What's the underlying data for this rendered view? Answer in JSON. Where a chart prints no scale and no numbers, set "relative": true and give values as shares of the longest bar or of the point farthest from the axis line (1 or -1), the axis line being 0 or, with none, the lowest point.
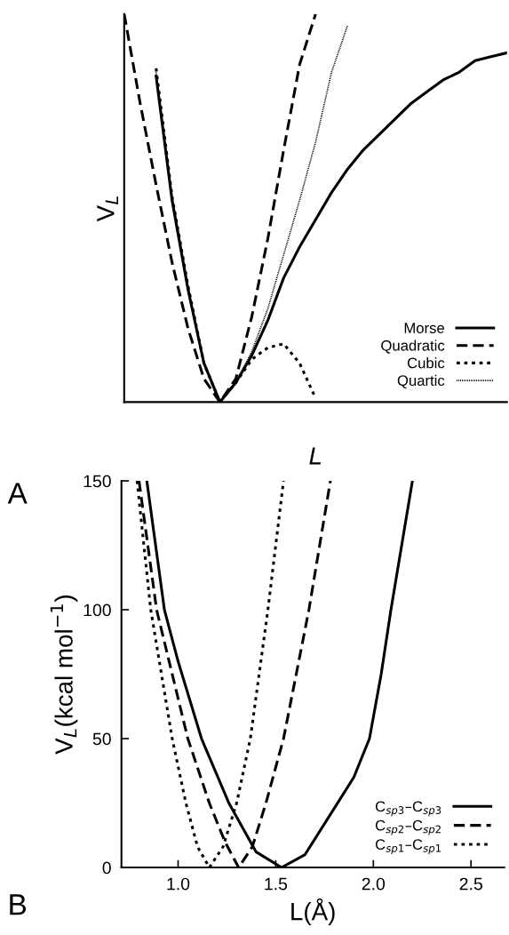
{
  "chart_data": [
    {
      "type": "line",
      "relative": true,
      "xlabel": "L",
      "ylabel": "V$_{L}$",
      "annotations": [
        "A"
      ],
      "legend": "bottom right",
      "tick_labels": false,
      "categories": [
        null,
        null,
        null,
        null,
        null,
        null,
        null,
        null,
        null,
        null,
        null,
        null,
        null,
        null,
        null,
        null,
        null,
        null,
        null,
        null,
        null,
        null,
        null,
        null,
        null
      ],
      "series": [
        {
          "name": "Morse",
          "color": "#000000",
          "line_style": "solid",
          "values": [
            null,
            null,
            0.84,
            0.52,
            0.29,
            0.1,
            0,
            0.05,
            0.12,
            0.21,
            0.32,
            0.4,
            0.47,
            0.54,
            0.6,
            0.65,
            0.69,
            0.73,
            0.77,
            0.8,
            0.83,
            0.85,
            0.88,
            0.89,
            0.9
          ]
        },
        {
          "name": "Quadratic",
          "color": "#000000",
          "line_style": "dashed",
          "values": [
            1.0,
            0.77,
            0.56,
            0.36,
            0.19,
            0.06,
            0,
            0.06,
            0.22,
            0.42,
            0.65,
            0.87,
            1.0,
            null,
            null,
            null,
            null,
            null,
            null,
            null,
            null,
            null,
            null,
            null,
            null
          ]
        },
        {
          "name": "Cubic",
          "color": "#000000",
          "line_style": "dotted",
          "values": [
            null,
            null,
            0.86,
            0.53,
            0.3,
            0.1,
            0,
            0.05,
            0.11,
            0.14,
            0.15,
            0.1,
            0.01,
            null,
            null,
            null,
            null,
            null,
            null,
            null,
            null,
            null,
            null,
            null,
            null
          ]
        },
        {
          "name": "Quartic",
          "color": "#000000",
          "line_style": "dotted",
          "values": [
            null,
            null,
            0.85,
            0.53,
            0.3,
            0.1,
            0,
            0.05,
            0.13,
            0.24,
            0.38,
            0.52,
            0.67,
            0.85,
            0.97,
            null,
            null,
            null,
            null,
            null,
            null,
            null,
            null,
            null,
            null
          ]
        }
      ]
    },
    {
      "type": "line",
      "xlabel": "L(Å)",
      "ylabel": "V$_{L}$(kcal mol$^{−1}$)",
      "annotations": [
        "B"
      ],
      "legend": "bottom right",
      "xlim": [
        0.71,
        2.67
      ],
      "xticks": [
        {
          "value": 1,
          "label": "1.0"
        },
        1.5,
        {
          "value": 2,
          "label": "2.0"
        },
        2.5
      ],
      "ylim": [
        0,
        150
      ],
      "yticks": [
        0,
        50,
        100,
        150
      ],
      "series": [
        {
          "name": "C$_{sp3}$–C$_{sp3}$",
          "color": "#000000",
          "line_style": "solid",
          "x": [
            0.84,
            0.93,
            1.0,
            1.12,
            1.26,
            1.4,
            1.53,
            1.65,
            1.8,
            1.9,
            1.98,
            2.04,
            2.09,
            2.2
          ],
          "values": [
            150,
            100,
            80,
            50,
            25,
            6,
            0,
            5,
            23,
            35,
            50,
            75,
            100,
            150
          ]
        },
        {
          "name": "C$_{sp2}$–C$_{sp2}$",
          "color": "#000000",
          "line_style": "dashed",
          "x": [
            0.8,
            0.89,
            1.05,
            1.16,
            1.24,
            1.31,
            1.38,
            1.45,
            1.54,
            1.67,
            1.78
          ],
          "values": [
            150,
            100,
            50,
            25,
            10,
            0,
            8,
            25,
            50,
            100,
            150
          ]
        },
        {
          "name": "C$_{sp1}$–C$_{sp1}$",
          "color": "#000000",
          "line_style": "dotted",
          "x": [
            0.79,
            0.86,
            0.97,
            1.04,
            1.1,
            1.16,
            1.23,
            1.3,
            1.37,
            1.46,
            1.54
          ],
          "values": [
            150,
            100,
            50,
            25,
            8,
            0,
            8,
            25,
            50,
            100,
            150
          ]
        }
      ]
    }
  ]
}
